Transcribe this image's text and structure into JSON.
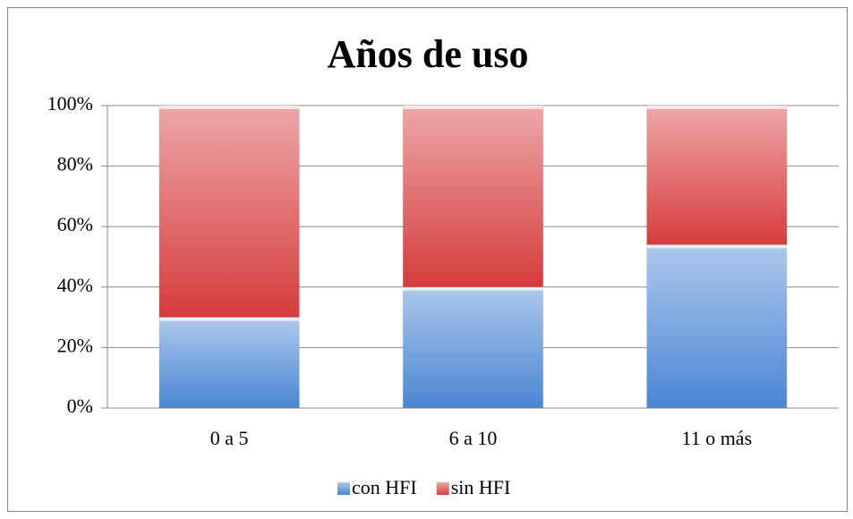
{
  "chart_data": {
    "type": "bar",
    "stacked": true,
    "title": "Años de uso",
    "categories": [
      "0 a 5",
      "6 a 10",
      "11 o más"
    ],
    "series": [
      {
        "name": "con HFI",
        "color": "#4a86d4",
        "values": [
          30,
          40,
          54
        ]
      },
      {
        "name": "sin HFI",
        "color": "#d63c3c",
        "values": [
          70,
          60,
          46
        ]
      }
    ],
    "ylim": [
      0,
      100
    ],
    "yticks": [
      {
        "value": 0,
        "label": "0%"
      },
      {
        "value": 20,
        "label": "20%"
      },
      {
        "value": 40,
        "label": "40%"
      },
      {
        "value": 60,
        "label": "60%"
      },
      {
        "value": 80,
        "label": "80%"
      },
      {
        "value": 100,
        "label": "100%"
      }
    ],
    "grid": true,
    "legend": "bottom"
  }
}
